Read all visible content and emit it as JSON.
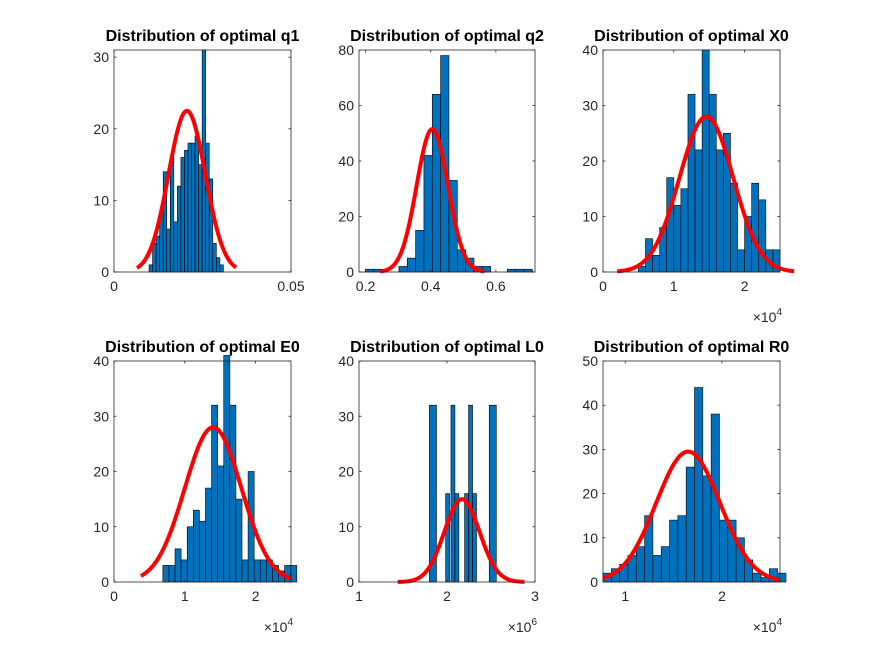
{
  "colors": {
    "bar": "#0072BD",
    "bar_edge": "#000000",
    "fit": "#FF0000",
    "axis": "#262626",
    "background": "#ffffff"
  },
  "chart_data": [
    {
      "type": "histogram",
      "title": "Distribution of optimal q1",
      "xlim": [
        0,
        0.05
      ],
      "ylim": [
        0,
        31
      ],
      "xticks": [
        0,
        0.05
      ],
      "xtick_labels": [
        "0",
        "0.05"
      ],
      "yticks": [
        0,
        10,
        20,
        30
      ],
      "ytick_labels": [
        "0",
        "10",
        "20",
        "30"
      ],
      "x_multiplier": null,
      "bins": {
        "start": 0.0099,
        "width": 0.001,
        "counts": [
          1,
          4,
          5,
          8,
          14,
          6,
          16,
          7,
          12,
          16,
          17,
          18,
          18,
          19,
          15,
          31,
          18,
          13,
          4,
          2,
          1
        ]
      },
      "fit": {
        "type": "normal",
        "mean": 0.0206,
        "sd": 0.0052,
        "peak": 22.5,
        "x_range": [
          0.0065,
          0.0345
        ]
      }
    },
    {
      "type": "histogram",
      "title": "Distribution of optimal q2",
      "xlim": [
        0.18,
        0.72
      ],
      "ylim": [
        0,
        80
      ],
      "xticks": [
        0.2,
        0.4,
        0.6
      ],
      "xtick_labels": [
        "0.2",
        "0.4",
        "0.6"
      ],
      "yticks": [
        0,
        20,
        40,
        60,
        80
      ],
      "ytick_labels": [
        "0",
        "20",
        "40",
        "60",
        "80"
      ],
      "x_multiplier": null,
      "bins": {
        "start": 0.2,
        "width": 0.0256,
        "counts": [
          1,
          1,
          0,
          0,
          2,
          5,
          15,
          42,
          64,
          78,
          33,
          8,
          5,
          2,
          2,
          0,
          0,
          1,
          1,
          1
        ]
      },
      "fit": {
        "type": "normal",
        "mean": 0.405,
        "sd": 0.048,
        "peak": 51.5,
        "x_range": [
          0.245,
          0.565
        ]
      }
    },
    {
      "type": "histogram",
      "title": "Distribution of optimal X0",
      "xlim": [
        0,
        25000
      ],
      "ylim": [
        0,
        40
      ],
      "xticks": [
        0,
        10000,
        20000
      ],
      "xtick_labels": [
        "0",
        "1",
        "2"
      ],
      "yticks": [
        0,
        10,
        20,
        30,
        40
      ],
      "ytick_labels": [
        "0",
        "10",
        "20",
        "30",
        "40"
      ],
      "x_multiplier": {
        "base": "×10",
        "exp": "4"
      },
      "bins": {
        "start": 5000,
        "width": 1000,
        "counts": [
          1,
          6,
          3,
          8,
          17,
          12,
          15,
          32,
          22,
          40,
          32,
          22,
          25,
          16,
          4,
          10,
          16,
          13,
          4,
          4
        ]
      },
      "fit": {
        "type": "normal",
        "mean": 14600,
        "sd": 3800,
        "peak": 28,
        "x_range": [
          2000,
          27000
        ]
      }
    },
    {
      "type": "histogram",
      "title": "Distribution of optimal E0",
      "xlim": [
        0,
        25000
      ],
      "ylim": [
        0,
        40
      ],
      "xticks": [
        0,
        10000,
        20000
      ],
      "xtick_labels": [
        "0",
        "1",
        "2"
      ],
      "yticks": [
        0,
        10,
        20,
        30,
        40
      ],
      "ytick_labels": [
        "0",
        "10",
        "20",
        "30",
        "40"
      ],
      "x_multiplier": {
        "base": "×10",
        "exp": "4"
      },
      "bins": {
        "start": 6900,
        "width": 860,
        "counts": [
          3,
          3,
          6,
          4,
          10,
          13,
          11,
          17,
          32,
          21,
          41,
          32,
          15,
          4,
          20,
          4,
          4,
          4,
          3,
          2,
          3,
          3
        ]
      },
      "fit": {
        "type": "normal",
        "mean": 14000,
        "sd": 4000,
        "peak": 28,
        "x_range": [
          3800,
          25000
        ]
      }
    },
    {
      "type": "histogram",
      "title": "Distribution of optimal L0",
      "xlim": [
        1000000,
        3000000
      ],
      "ylim": [
        0,
        40
      ],
      "xticks": [
        1000000,
        2000000,
        3000000
      ],
      "xtick_labels": [
        "1",
        "2",
        "3"
      ],
      "yticks": [
        0,
        10,
        20,
        30,
        40
      ],
      "ytick_labels": [
        "0",
        "10",
        "20",
        "30",
        "40"
      ],
      "x_multiplier": {
        "base": "×10",
        "exp": "6"
      },
      "bars": [
        {
          "x0": 1800000,
          "x1": 1880000,
          "count": 32
        },
        {
          "x0": 1985000,
          "x1": 2030000,
          "count": 16
        },
        {
          "x0": 2045000,
          "x1": 2090000,
          "count": 32
        },
        {
          "x0": 2090000,
          "x1": 2135000,
          "count": 16
        },
        {
          "x0": 2200000,
          "x1": 2245000,
          "count": 16
        },
        {
          "x0": 2245000,
          "x1": 2290000,
          "count": 32
        },
        {
          "x0": 2290000,
          "x1": 2335000,
          "count": 16
        },
        {
          "x0": 2480000,
          "x1": 2560000,
          "count": 32
        }
      ],
      "fit": {
        "type": "normal",
        "mean": 2170000,
        "sd": 200000,
        "peak": 15,
        "x_range": [
          1440000,
          2880000
        ]
      }
    },
    {
      "type": "histogram",
      "title": "Distribution of optimal R0",
      "xlim": [
        7700,
        26000
      ],
      "ylim": [
        0,
        50
      ],
      "xticks": [
        10000,
        20000
      ],
      "xtick_labels": [
        "1",
        "2"
      ],
      "yticks": [
        0,
        10,
        20,
        30,
        40,
        50
      ],
      "ytick_labels": [
        "0",
        "10",
        "20",
        "30",
        "40",
        "50"
      ],
      "x_multiplier": {
        "base": "×10",
        "exp": "4"
      },
      "bins": {
        "start": 7700,
        "width": 860,
        "counts": [
          2,
          3,
          4,
          6,
          8,
          15,
          6,
          8,
          14,
          15,
          26,
          44,
          24,
          38,
          14,
          14,
          10,
          5,
          2,
          1,
          3,
          2
        ]
      },
      "fit": {
        "type": "normal",
        "mean": 16500,
        "sd": 3300,
        "peak": 29.5,
        "x_range": [
          7700,
          26000
        ]
      }
    }
  ]
}
